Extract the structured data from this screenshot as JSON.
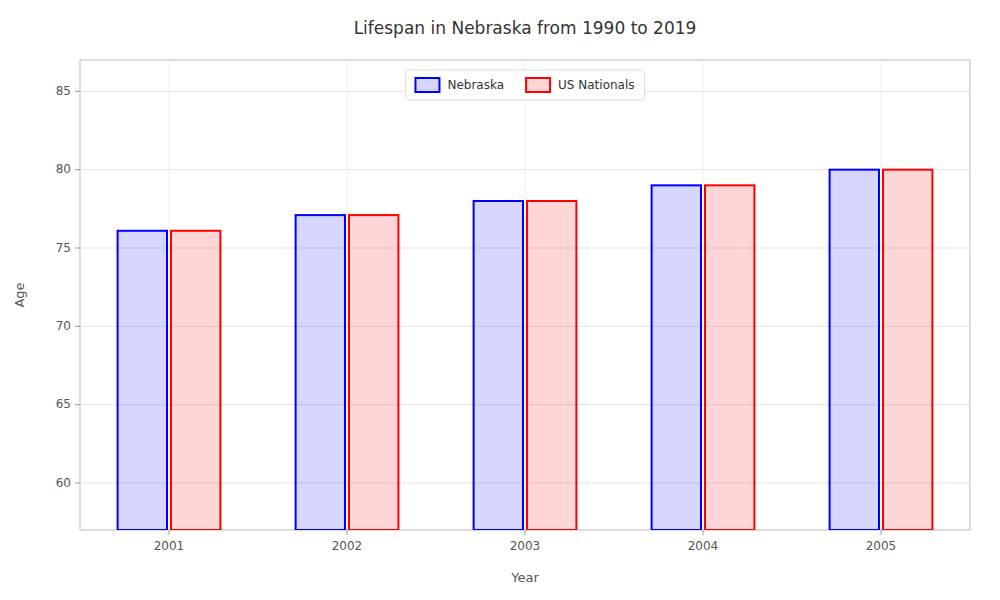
{
  "chart_data": {
    "type": "bar",
    "title": "Lifespan in Nebraska from 1990 to 2019",
    "x_label": "Year",
    "y_label": "Age",
    "categories": [
      "2001",
      "2002",
      "2003",
      "2004",
      "2005"
    ],
    "series": [
      {
        "name": "Nebraska",
        "color": "#0000ff",
        "values": [
          76.1,
          77.1,
          78.0,
          79.0,
          80.0
        ]
      },
      {
        "name": "US Nationals",
        "color": "#ff0000",
        "values": [
          76.1,
          77.1,
          78.0,
          79.0,
          80.0
        ]
      }
    ],
    "ylim": [
      57,
      87
    ],
    "yticks": [
      60,
      65,
      70,
      75,
      80,
      85
    ],
    "grid": true,
    "legend": "top"
  }
}
